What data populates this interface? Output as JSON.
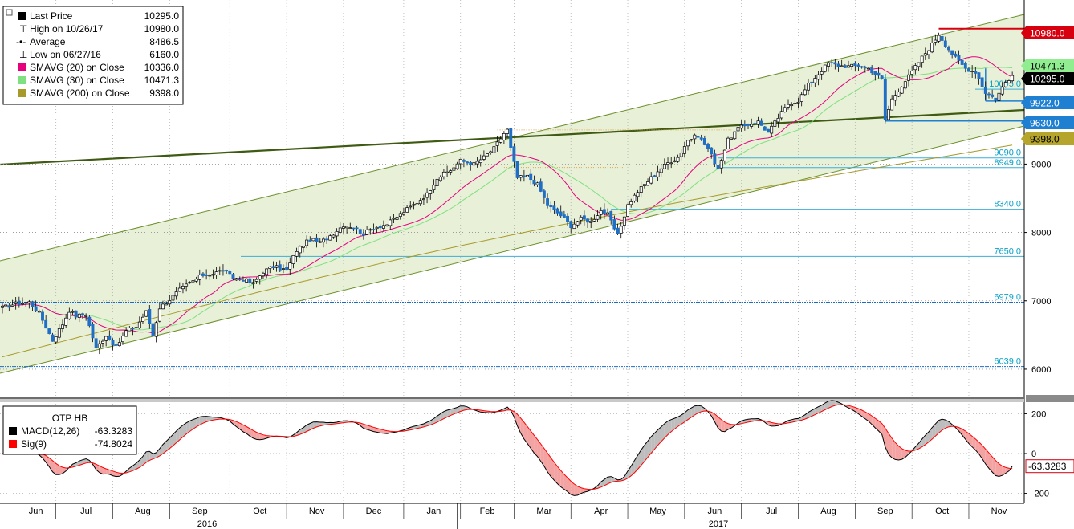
{
  "chart_data": [
    {
      "type": "candlestick",
      "ticker": "OTP HB",
      "ylim": [
        5600,
        11400
      ],
      "yticks": [
        6000,
        7000,
        8000,
        9000
      ],
      "months": [
        "Jun",
        "Jul",
        "Aug",
        "Sep",
        "Oct",
        "Nov",
        "Dec",
        "Jan",
        "Feb",
        "Mar",
        "Apr",
        "May",
        "Jun",
        "Jul",
        "Aug",
        "Sep",
        "Oct",
        "Nov"
      ],
      "years": [
        "2016",
        "2017"
      ],
      "legend": [
        {
          "label": "Last Price",
          "value": "10295.0",
          "color": "#000000",
          "marker": "square"
        },
        {
          "label": "High on 10/26/17",
          "value": "10980.0",
          "color": "#000000",
          "marker": "high"
        },
        {
          "label": "Average",
          "value": "8486.5",
          "color": "#000000",
          "marker": "avg"
        },
        {
          "label": "Low on 06/27/16",
          "value": "6160.0",
          "color": "#000000",
          "marker": "low"
        },
        {
          "label": "SMAVG (20) on Close",
          "value": "10336.0",
          "color": "#e6007e",
          "marker": "square"
        },
        {
          "label": "SMAVG (30) on Close",
          "value": "10471.3",
          "color": "#7fe07f",
          "marker": "square"
        },
        {
          "label": "SMAVG (200) on Close",
          "value": "9398.0",
          "color": "#a89a2a",
          "marker": "square"
        }
      ],
      "price_tags": [
        {
          "text": "10980.0",
          "value": 10980,
          "bg": "#d7000f",
          "fg": "#ffffff"
        },
        {
          "text": "10471.3",
          "value": 10471.3,
          "bg": "#90ee90",
          "fg": "#000000"
        },
        {
          "text": "10295.0",
          "value": 10295,
          "bg": "#000000",
          "fg": "#ffffff"
        },
        {
          "text": "9922.0",
          "value": 9922,
          "bg": "#1f7fd1",
          "fg": "#ffffff"
        },
        {
          "text": "9630.0",
          "value": 9630,
          "bg": "#1f7fd1",
          "fg": "#ffffff"
        },
        {
          "text": "9398.0",
          "value": 9398,
          "bg": "#b5a52c",
          "fg": "#000000"
        }
      ],
      "levels": [
        {
          "text": "10095.0",
          "value": 10095
        },
        {
          "text": "9090.0",
          "value": 9090
        },
        {
          "text": "8949.0",
          "value": 8949
        },
        {
          "text": "8340.0",
          "value": 8340
        },
        {
          "text": "7650.0",
          "value": 7650
        },
        {
          "text": "6979.0",
          "value": 6979
        },
        {
          "text": "6039.0",
          "value": 6039
        }
      ],
      "close_anchors": [
        [
          0,
          6900
        ],
        [
          4,
          6960
        ],
        [
          8,
          6980
        ],
        [
          11,
          6820
        ],
        [
          15,
          6420
        ],
        [
          18,
          6660
        ],
        [
          20,
          6860
        ],
        [
          22,
          6780
        ],
        [
          25,
          6800
        ],
        [
          28,
          6300
        ],
        [
          31,
          6500
        ],
        [
          34,
          6320
        ],
        [
          37,
          6560
        ],
        [
          40,
          6620
        ],
        [
          43,
          6840
        ],
        [
          45,
          6500
        ],
        [
          47,
          6900
        ],
        [
          50,
          7020
        ],
        [
          53,
          7160
        ],
        [
          56,
          7260
        ],
        [
          60,
          7380
        ],
        [
          63,
          7400
        ],
        [
          66,
          7450
        ],
        [
          69,
          7330
        ],
        [
          72,
          7320
        ],
        [
          75,
          7250
        ],
        [
          78,
          7430
        ],
        [
          81,
          7500
        ],
        [
          85,
          7450
        ],
        [
          88,
          7740
        ],
        [
          92,
          7900
        ],
        [
          95,
          7850
        ],
        [
          99,
          7990
        ],
        [
          102,
          8110
        ],
        [
          105,
          8080
        ],
        [
          108,
          7980
        ],
        [
          111,
          8070
        ],
        [
          115,
          8120
        ],
        [
          118,
          8230
        ],
        [
          121,
          8340
        ],
        [
          124,
          8440
        ],
        [
          127,
          8560
        ],
        [
          130,
          8800
        ],
        [
          134,
          8910
        ],
        [
          137,
          9050
        ],
        [
          141,
          9000
        ],
        [
          144,
          9100
        ],
        [
          147,
          9230
        ],
        [
          150,
          9450
        ],
        [
          151,
          9500
        ],
        [
          152,
          9230
        ],
        [
          154,
          8800
        ],
        [
          157,
          8820
        ],
        [
          160,
          8700
        ],
        [
          163,
          8400
        ],
        [
          167,
          8250
        ],
        [
          170,
          8100
        ],
        [
          173,
          8200
        ],
        [
          176,
          8160
        ],
        [
          179,
          8320
        ],
        [
          181,
          8260
        ],
        [
          184,
          7950
        ],
        [
          187,
          8400
        ],
        [
          190,
          8600
        ],
        [
          193,
          8750
        ],
        [
          196,
          8900
        ],
        [
          199,
          9020
        ],
        [
          202,
          9100
        ],
        [
          205,
          9350
        ],
        [
          208,
          9420
        ],
        [
          211,
          9220
        ],
        [
          214,
          8940
        ],
        [
          217,
          9350
        ],
        [
          220,
          9520
        ],
        [
          223,
          9580
        ],
        [
          226,
          9620
        ],
        [
          229,
          9460
        ],
        [
          232,
          9680
        ],
        [
          235,
          9880
        ],
        [
          238,
          9930
        ],
        [
          241,
          10160
        ],
        [
          244,
          10320
        ],
        [
          247,
          10480
        ],
        [
          250,
          10440
        ],
        [
          253,
          10430
        ],
        [
          256,
          10440
        ],
        [
          259,
          10400
        ],
        [
          261,
          10320
        ],
        [
          263,
          10240
        ],
        [
          264,
          9650
        ],
        [
          266,
          9950
        ],
        [
          269,
          10150
        ],
        [
          272,
          10350
        ],
        [
          275,
          10560
        ],
        [
          278,
          10750
        ],
        [
          280,
          10900
        ],
        [
          282,
          10750
        ],
        [
          285,
          10550
        ],
        [
          288,
          10400
        ],
        [
          291,
          10350
        ],
        [
          294,
          10050
        ],
        [
          297,
          9950
        ],
        [
          300,
          10200
        ],
        [
          302,
          10295
        ]
      ],
      "macd": {
        "label": "MACD(12,26)",
        "value": "-63.3283",
        "color": "#000000",
        "ylim": [
          -250,
          250
        ],
        "yticks": [
          200,
          0,
          -200
        ]
      },
      "signal": {
        "label": "Sig(9)",
        "value": "-74.8024",
        "color": "#ff0000"
      },
      "macd_tag": {
        "text": "-63.3283",
        "value": -63.3283
      }
    }
  ]
}
